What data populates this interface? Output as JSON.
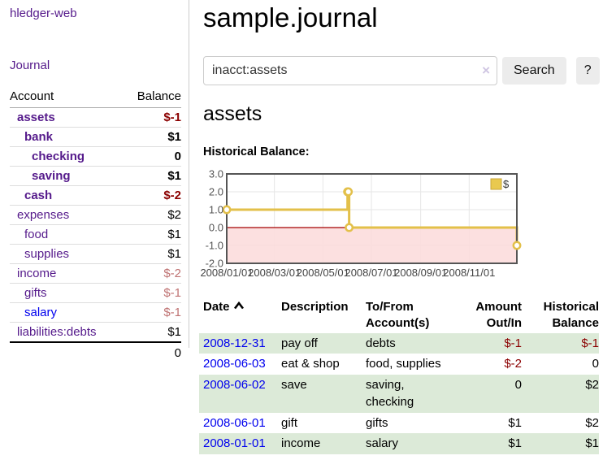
{
  "app": {
    "brand": "hledger-web"
  },
  "nav": {
    "journal": "Journal"
  },
  "sidebar": {
    "headers": {
      "account": "Account",
      "balance": "Balance"
    },
    "accounts": [
      {
        "name": "assets",
        "balance": "$-1",
        "depth": 1,
        "bold": true,
        "negative": "strong"
      },
      {
        "name": "bank",
        "balance": "$1",
        "depth": 2,
        "bold": true,
        "negative": "none"
      },
      {
        "name": "checking",
        "balance": "0",
        "depth": 3,
        "bold": true,
        "negative": "none"
      },
      {
        "name": "saving",
        "balance": "$1",
        "depth": 3,
        "bold": true,
        "negative": "none"
      },
      {
        "name": "cash",
        "balance": "$-2",
        "depth": 2,
        "bold": true,
        "negative": "strong"
      },
      {
        "name": "expenses",
        "balance": "$2",
        "depth": 1,
        "bold": false,
        "negative": "none"
      },
      {
        "name": "food",
        "balance": "$1",
        "depth": 2,
        "bold": false,
        "negative": "none"
      },
      {
        "name": "supplies",
        "balance": "$1",
        "depth": 2,
        "bold": false,
        "negative": "none"
      },
      {
        "name": "income",
        "balance": "$-2",
        "depth": 1,
        "bold": false,
        "negative": "soft"
      },
      {
        "name": "gifts",
        "balance": "$-1",
        "depth": 2,
        "bold": false,
        "negative": "soft"
      },
      {
        "name": "salary",
        "balance": "$-1",
        "depth": 2,
        "bold": false,
        "negative": "soft",
        "unvisited": true
      },
      {
        "name": "liabilities:debts",
        "balance": "$1",
        "depth": 1,
        "bold": false,
        "negative": "none"
      }
    ],
    "total": "0"
  },
  "header": {
    "title": "sample.journal"
  },
  "search": {
    "value": "inacct:assets",
    "clear_label": "×",
    "button_label": "Search",
    "help_label": "?"
  },
  "account_page": {
    "title": "assets",
    "chart_heading": "Historical Balance:"
  },
  "chart_data": {
    "type": "line",
    "step": true,
    "title": "Historical Balance:",
    "xlim": [
      "2008-01-01",
      "2008-12-31"
    ],
    "ylim": [
      -2.0,
      3.0
    ],
    "yticks": [
      3.0,
      2.0,
      1.0,
      0.0,
      -1.0,
      -2.0
    ],
    "xticks": [
      "2008/01/01",
      "2008/03/01",
      "2008/05/01",
      "2008/07/01",
      "2008/09/01",
      "2008/11/01"
    ],
    "grid": true,
    "legend_position": "top-right",
    "series": [
      {
        "name": "$",
        "color": "#e3c04a",
        "points": [
          [
            "2008-01-01",
            1.0
          ],
          [
            "2008-06-01",
            2.0
          ],
          [
            "2008-06-02",
            2.0
          ],
          [
            "2008-06-03",
            0.0
          ],
          [
            "2008-12-31",
            -1.0
          ]
        ]
      }
    ],
    "colors": {
      "negative_fill": "#fbdada",
      "zero_line": "#a40000",
      "gridline": "#e6e6e6",
      "plot_border": "#555555",
      "tick_label": "#545454",
      "marker_fill": "#ffffff"
    }
  },
  "register": {
    "headers": {
      "date": "Date",
      "description": "Description",
      "accounts": "To/From Account(s)",
      "amount": "Amount Out/In",
      "balance": "Historical Balance"
    },
    "rows": [
      {
        "date": "2008-12-31",
        "description": "pay off",
        "accounts": "debts",
        "amount": "$-1",
        "amount_negative": true,
        "balance": "$-1",
        "balance_negative": true
      },
      {
        "date": "2008-06-03",
        "description": "eat & shop",
        "accounts": "food, supplies",
        "amount": "$-2",
        "amount_negative": true,
        "balance": "0",
        "balance_negative": false
      },
      {
        "date": "2008-06-02",
        "description": "save",
        "accounts": "saving, checking",
        "amount": "0",
        "amount_negative": false,
        "balance": "$2",
        "balance_negative": false
      },
      {
        "date": "2008-06-01",
        "description": "gift",
        "accounts": "gifts",
        "amount": "$1",
        "amount_negative": false,
        "balance": "$2",
        "balance_negative": false
      },
      {
        "date": "2008-01-01",
        "description": "income",
        "accounts": "salary",
        "amount": "$1",
        "amount_negative": false,
        "balance": "$1",
        "balance_negative": false
      }
    ]
  }
}
